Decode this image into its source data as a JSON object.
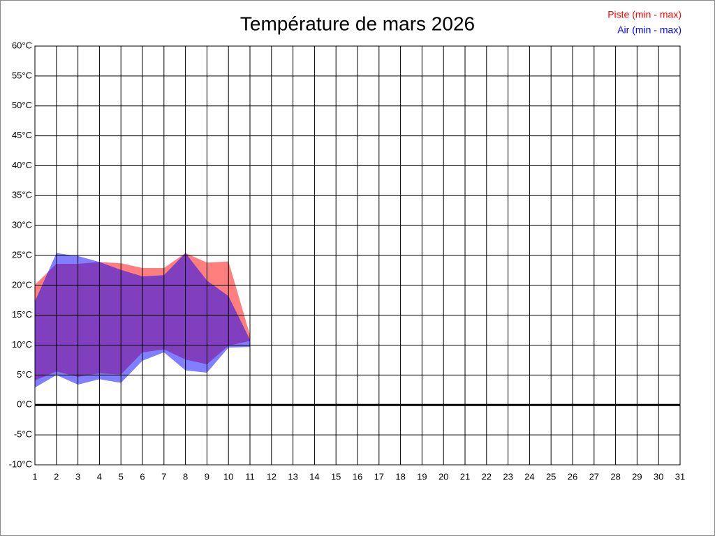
{
  "chart_data": {
    "type": "range-area",
    "title": "Température de mars 2026",
    "x": [
      1,
      2,
      3,
      4,
      5,
      6,
      7,
      8,
      9,
      10,
      11,
      12,
      13,
      14,
      15,
      16,
      17,
      18,
      19,
      20,
      21,
      22,
      23,
      24,
      25,
      26,
      27,
      28,
      29,
      30,
      31
    ],
    "xlim": [
      1,
      31
    ],
    "xticks": [
      1,
      2,
      3,
      4,
      5,
      6,
      7,
      8,
      9,
      10,
      11,
      12,
      13,
      14,
      15,
      16,
      17,
      18,
      19,
      20,
      21,
      22,
      23,
      24,
      25,
      26,
      27,
      28,
      29,
      30,
      31
    ],
    "ylim": [
      -10,
      60
    ],
    "yticks": [
      {
        "value": -10,
        "label": "-10°C"
      },
      {
        "value": -5,
        "label": "-5°C"
      },
      {
        "value": 0,
        "label": "0°C"
      },
      {
        "value": 5,
        "label": "5°C"
      },
      {
        "value": 10,
        "label": "10°C"
      },
      {
        "value": 15,
        "label": "15°C"
      },
      {
        "value": 20,
        "label": "20°C"
      },
      {
        "value": 25,
        "label": "25°C"
      },
      {
        "value": 30,
        "label": "30°C"
      },
      {
        "value": 35,
        "label": "35°C"
      },
      {
        "value": 40,
        "label": "40°C"
      },
      {
        "value": 45,
        "label": "45°C"
      },
      {
        "value": 50,
        "label": "50°C"
      },
      {
        "value": 55,
        "label": "55°C"
      },
      {
        "value": 60,
        "label": "60°C"
      }
    ],
    "grid": true,
    "legend": "top-right",
    "series": [
      {
        "name": "Piste (min - max)",
        "color": "#ff0000",
        "low": [
          4.1,
          5.6,
          4.7,
          5.3,
          5.1,
          8.8,
          9.3,
          7.6,
          6.8,
          9.9,
          10.7,
          null,
          null,
          null,
          null,
          null,
          null,
          null,
          null,
          null,
          null,
          null,
          null,
          null,
          null,
          null,
          null,
          null,
          null,
          null,
          null
        ],
        "high": [
          20.1,
          23.6,
          23.6,
          23.9,
          23.7,
          22.9,
          22.9,
          25.4,
          23.8,
          24.0,
          11.7,
          null,
          null,
          null,
          null,
          null,
          null,
          null,
          null,
          null,
          null,
          null,
          null,
          null,
          null,
          null,
          null,
          null,
          null,
          null,
          null
        ]
      },
      {
        "name": "Air (min - max)",
        "color": "#0000ff",
        "low": [
          2.9,
          5.0,
          3.4,
          4.3,
          3.7,
          7.4,
          8.8,
          5.8,
          5.4,
          9.6,
          9.7,
          null,
          null,
          null,
          null,
          null,
          null,
          null,
          null,
          null,
          null,
          null,
          null,
          null,
          null,
          null,
          null,
          null,
          null,
          null,
          null
        ],
        "high": [
          17.3,
          25.4,
          24.9,
          23.9,
          22.6,
          21.5,
          21.7,
          25.4,
          20.8,
          18.2,
          10.9,
          null,
          null,
          null,
          null,
          null,
          null,
          null,
          null,
          null,
          null,
          null,
          null,
          null,
          null,
          null,
          null,
          null,
          null,
          null,
          null
        ]
      }
    ]
  }
}
